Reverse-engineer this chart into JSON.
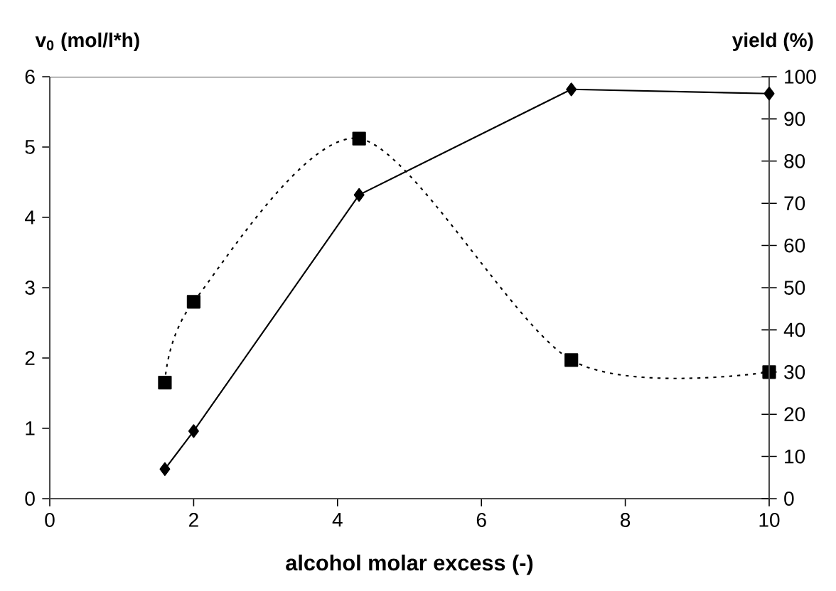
{
  "chart_data": {
    "type": "line",
    "xlabel": "alcohol molar excess (-)",
    "ylabel": "v$_{0}$ (mol/l*h)",
    "y2label": "yield (%)",
    "xlim": [
      0,
      10
    ],
    "xticks": [
      0,
      2,
      4,
      6,
      8,
      10
    ],
    "ylim": [
      0,
      6
    ],
    "yticks": [
      0,
      1,
      2,
      3,
      4,
      5,
      6
    ],
    "y2lim": [
      0,
      100
    ],
    "y2ticks": [
      0,
      10,
      20,
      30,
      40,
      50,
      60,
      70,
      80,
      90,
      100
    ],
    "series": [
      {
        "color": "#000000",
        "axis": "y",
        "marker": "square",
        "line_style": "dotted",
        "x": [
          1.6,
          2.0,
          4.3,
          7.25,
          10
        ],
        "values": [
          1.65,
          2.8,
          5.12,
          1.97,
          1.8
        ]
      },
      {
        "color": "#000000",
        "axis": "y2",
        "marker": "diamond",
        "line_style": "solid",
        "x": [
          1.6,
          2.0,
          4.3,
          7.25,
          10
        ],
        "values": [
          7,
          16,
          72,
          97,
          96
        ]
      }
    ]
  }
}
